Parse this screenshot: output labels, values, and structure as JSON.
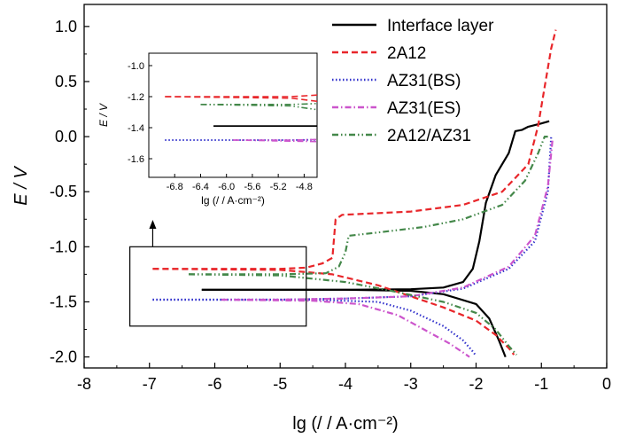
{
  "chart_data": {
    "type": "line",
    "xlabel": "lg (/ / A·cm⁻²)",
    "ylabel": "E / V",
    "xlim": [
      -8,
      0
    ],
    "ylim": [
      -2.1,
      1.2
    ],
    "xticks": [
      "-8",
      "-7",
      "-6",
      "-5",
      "-4",
      "-3",
      "-2",
      "-1",
      "0"
    ],
    "yticks": [
      "1.0",
      "0.5",
      "0.0",
      "-0.5",
      "-1.0",
      "-1.5",
      "-2.0"
    ],
    "legend_position": "top-right",
    "series": [
      {
        "name": "Interface layer",
        "color": "#000000",
        "style": "solid",
        "anodic": [
          [
            -6.2,
            -1.39
          ],
          [
            -5,
            -1.39
          ],
          [
            -4,
            -1.39
          ],
          [
            -3,
            -1.385
          ],
          [
            -2.5,
            -1.37
          ],
          [
            -2.2,
            -1.32
          ],
          [
            -2.05,
            -1.2
          ],
          [
            -1.95,
            -0.95
          ],
          [
            -1.85,
            -0.6
          ],
          [
            -1.7,
            -0.35
          ],
          [
            -1.5,
            -0.15
          ],
          [
            -1.4,
            0.05
          ],
          [
            -1.3,
            0.06
          ],
          [
            -1.2,
            0.09
          ],
          [
            -1.0,
            0.12
          ],
          [
            -0.88,
            0.14
          ]
        ],
        "cathodic": [
          [
            -6.2,
            -1.39
          ],
          [
            -4,
            -1.39
          ],
          [
            -3,
            -1.4
          ],
          [
            -2.5,
            -1.43
          ],
          [
            -2,
            -1.52
          ],
          [
            -1.8,
            -1.65
          ],
          [
            -1.65,
            -1.85
          ],
          [
            -1.55,
            -2.0
          ]
        ]
      },
      {
        "name": "2A12",
        "color": "#e8262a",
        "style": "dashed",
        "anodic": [
          [
            -6.95,
            -1.2
          ],
          [
            -5,
            -1.2
          ],
          [
            -4.6,
            -1.19
          ],
          [
            -4.35,
            -1.15
          ],
          [
            -4.2,
            -1.1
          ],
          [
            -4.15,
            -0.75
          ],
          [
            -4.05,
            -0.71
          ],
          [
            -3,
            -0.68
          ],
          [
            -2.2,
            -0.62
          ],
          [
            -1.6,
            -0.5
          ],
          [
            -1.2,
            -0.25
          ],
          [
            -1.05,
            0.1
          ],
          [
            -0.95,
            0.45
          ],
          [
            -0.85,
            0.8
          ],
          [
            -0.78,
            0.97
          ]
        ],
        "cathodic": [
          [
            -6.95,
            -1.2
          ],
          [
            -5,
            -1.21
          ],
          [
            -4.2,
            -1.25
          ],
          [
            -3.5,
            -1.35
          ],
          [
            -3,
            -1.45
          ],
          [
            -2.5,
            -1.55
          ],
          [
            -2,
            -1.67
          ],
          [
            -1.7,
            -1.8
          ],
          [
            -1.5,
            -1.92
          ],
          [
            -1.42,
            -1.98
          ]
        ]
      },
      {
        "name": "AZ31(BS)",
        "color": "#3333cc",
        "style": "dotted",
        "anodic": [
          [
            -6.95,
            -1.48
          ],
          [
            -5,
            -1.48
          ],
          [
            -4,
            -1.47
          ],
          [
            -3,
            -1.45
          ],
          [
            -2.2,
            -1.38
          ],
          [
            -1.5,
            -1.2
          ],
          [
            -1.1,
            -0.95
          ],
          [
            -0.9,
            -0.5
          ],
          [
            -0.85,
            0.0
          ]
        ],
        "cathodic": [
          [
            -6.95,
            -1.48
          ],
          [
            -4.5,
            -1.48
          ],
          [
            -3.5,
            -1.5
          ],
          [
            -3,
            -1.58
          ],
          [
            -2.5,
            -1.72
          ],
          [
            -2.2,
            -1.85
          ],
          [
            -2.05,
            -1.95
          ],
          [
            -2.0,
            -1.99
          ]
        ]
      },
      {
        "name": "AZ31(ES)",
        "color": "#cc55cc",
        "style": "dash-dot",
        "anodic": [
          [
            -5.9,
            -1.48
          ],
          [
            -5,
            -1.48
          ],
          [
            -4,
            -1.47
          ],
          [
            -3,
            -1.45
          ],
          [
            -2.2,
            -1.37
          ],
          [
            -1.5,
            -1.18
          ],
          [
            -1.1,
            -0.9
          ],
          [
            -0.9,
            -0.45
          ],
          [
            -0.83,
            -0.03
          ]
        ],
        "cathodic": [
          [
            -5.9,
            -1.48
          ],
          [
            -4.5,
            -1.49
          ],
          [
            -3.8,
            -1.52
          ],
          [
            -3.2,
            -1.62
          ],
          [
            -2.8,
            -1.75
          ],
          [
            -2.4,
            -1.88
          ],
          [
            -2.2,
            -1.96
          ],
          [
            -2.1,
            -2.0
          ]
        ]
      },
      {
        "name": "2A12/AZ31",
        "color": "#44884a",
        "style": "dash-dot-dot",
        "anodic": [
          [
            -6.4,
            -1.25
          ],
          [
            -5,
            -1.25
          ],
          [
            -4.3,
            -1.24
          ],
          [
            -4.1,
            -1.18
          ],
          [
            -4.0,
            -1.05
          ],
          [
            -3.95,
            -0.9
          ],
          [
            -3.5,
            -0.87
          ],
          [
            -2.8,
            -0.82
          ],
          [
            -2.2,
            -0.75
          ],
          [
            -1.6,
            -0.62
          ],
          [
            -1.25,
            -0.4
          ],
          [
            -1.05,
            -0.15
          ],
          [
            -0.95,
            0.0
          ],
          [
            -0.9,
            0.0
          ]
        ],
        "cathodic": [
          [
            -6.4,
            -1.25
          ],
          [
            -5,
            -1.26
          ],
          [
            -4,
            -1.32
          ],
          [
            -3.3,
            -1.4
          ],
          [
            -2.5,
            -1.5
          ],
          [
            -2,
            -1.6
          ],
          [
            -1.7,
            -1.75
          ],
          [
            -1.5,
            -1.9
          ],
          [
            -1.38,
            -1.98
          ]
        ]
      }
    ],
    "inset": {
      "xlim": [
        -7.2,
        -4.6
      ],
      "ylim": [
        -1.72,
        -0.92
      ],
      "xticks": [
        "-6.8",
        "-6.4",
        "-6.0",
        "-5.6",
        "-5.2",
        "-4.8"
      ],
      "yticks": [
        "-1.0",
        "-1.2",
        "-1.4",
        "-1.6"
      ],
      "xlabel": "lg (/ / A·cm⁻²)",
      "ylabel": "E / V"
    }
  }
}
